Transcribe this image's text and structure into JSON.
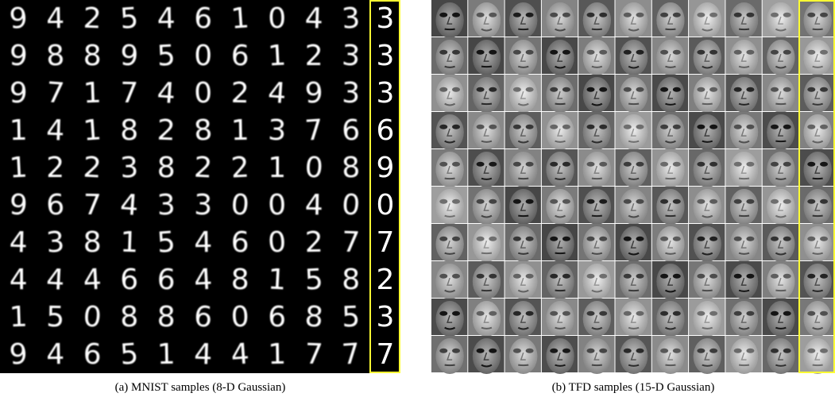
{
  "panels": [
    {
      "caption": "(a) MNIST samples (8-D Gaussian)",
      "samples": [
        [
          "9",
          "4",
          "2",
          "5",
          "4",
          "6",
          "1",
          "0",
          "4",
          "3"
        ],
        [
          "9",
          "8",
          "8",
          "9",
          "5",
          "0",
          "6",
          "1",
          "2",
          "3"
        ],
        [
          "9",
          "7",
          "1",
          "7",
          "4",
          "0",
          "2",
          "4",
          "9",
          "3"
        ],
        [
          "1",
          "4",
          "1",
          "8",
          "2",
          "8",
          "1",
          "3",
          "7",
          "6"
        ],
        [
          "1",
          "2",
          "2",
          "3",
          "8",
          "2",
          "2",
          "1",
          "0",
          "8"
        ],
        [
          "9",
          "6",
          "7",
          "4",
          "3",
          "3",
          "0",
          "0",
          "4",
          "0"
        ],
        [
          "4",
          "3",
          "8",
          "1",
          "5",
          "4",
          "6",
          "0",
          "2",
          "7"
        ],
        [
          "4",
          "4",
          "4",
          "6",
          "6",
          "4",
          "8",
          "1",
          "5",
          "8"
        ],
        [
          "1",
          "5",
          "0",
          "8",
          "8",
          "6",
          "0",
          "6",
          "8",
          "5"
        ],
        [
          "9",
          "4",
          "6",
          "5",
          "1",
          "4",
          "4",
          "1",
          "7",
          "7"
        ]
      ],
      "neighbors": [
        "3",
        "3",
        "3",
        "6",
        "9",
        "0",
        "7",
        "2",
        "3",
        "7"
      ]
    },
    {
      "caption": "(b) TFD samples (15-D Gaussian)"
    }
  ]
}
